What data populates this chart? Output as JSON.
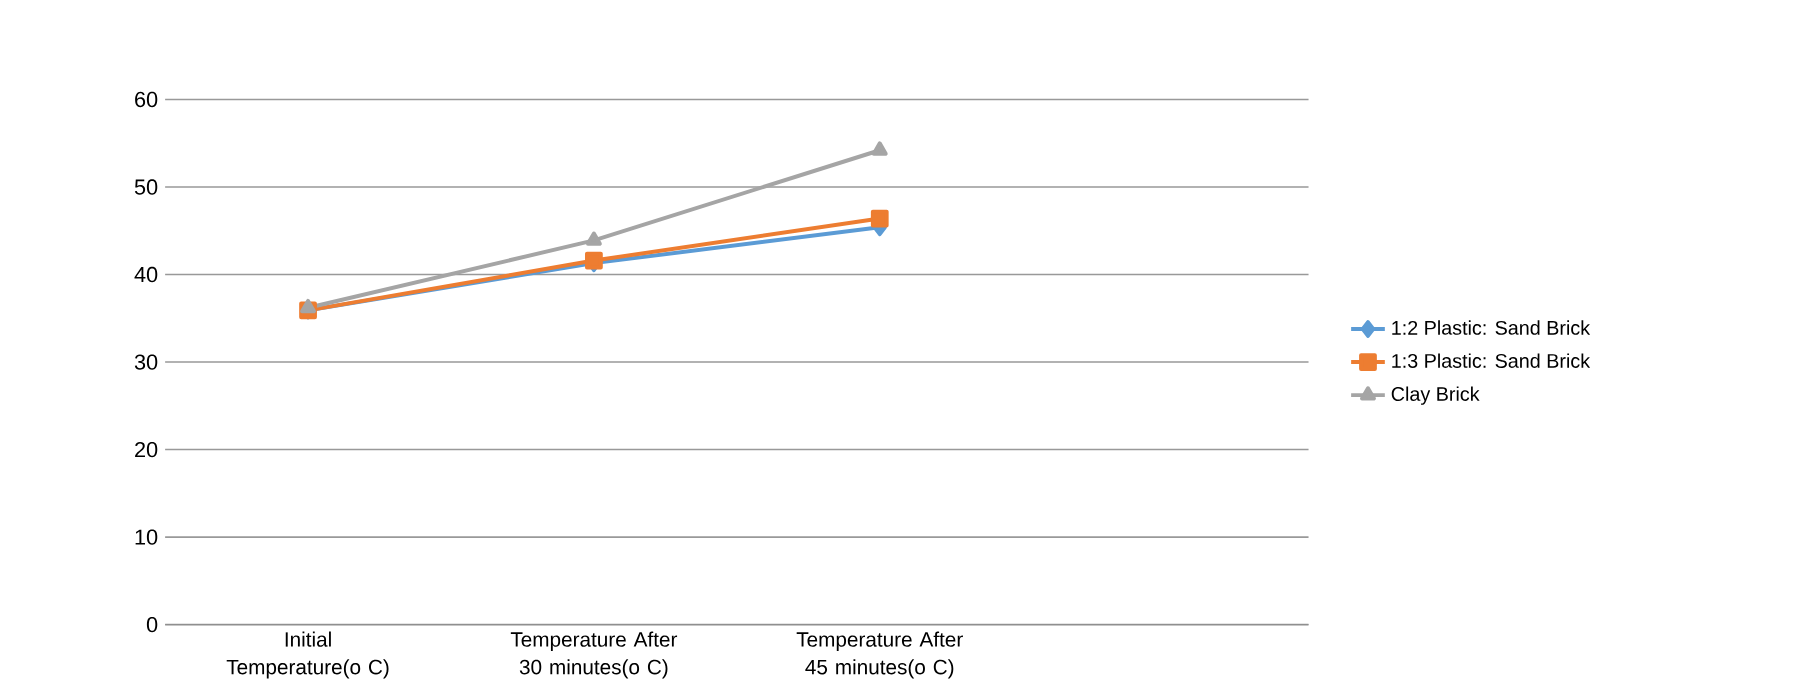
{
  "chart_data": {
    "type": "line",
    "categories": [
      "Initial Temperature(o C)",
      "Temperature After 30 minutes(o C)",
      "Temperature After 45 minutes(o C)",
      null
    ],
    "series": [
      {
        "name": "1:2 Plastic: Sand Brick",
        "color": "#5b9bd5",
        "marker": "diamond",
        "values": [
          35.9,
          41.3,
          45.4,
          null
        ]
      },
      {
        "name": "1:3 Plastic: Sand Brick",
        "color": "#ed7d31",
        "marker": "square",
        "values": [
          35.9,
          41.6,
          46.4,
          null
        ]
      },
      {
        "name": "Clay Brick",
        "color": "#a5a5a5",
        "marker": "triangle",
        "values": [
          36.2,
          43.9,
          54.2,
          null
        ]
      }
    ],
    "ylim": [
      0,
      60
    ],
    "yticks": [
      0,
      10,
      20,
      30,
      40,
      50,
      60
    ],
    "grid": "y",
    "legend": "right"
  }
}
